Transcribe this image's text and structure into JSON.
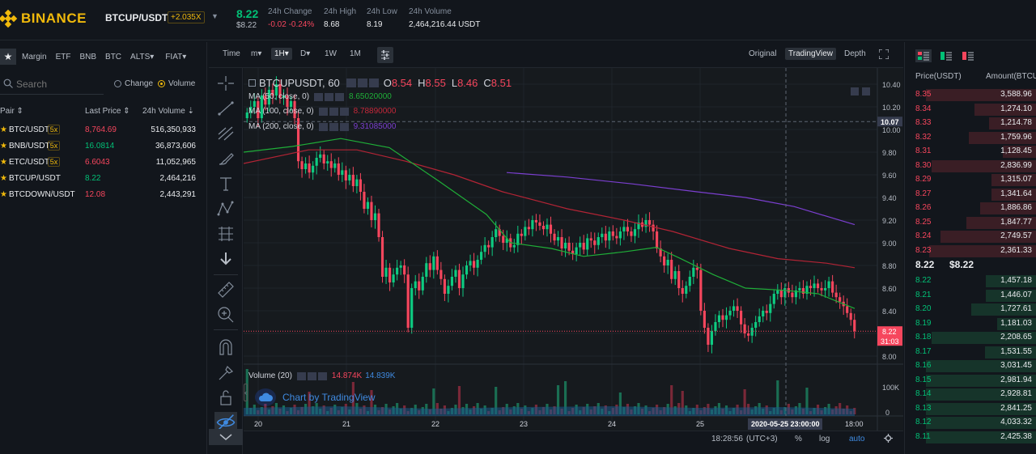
{
  "header": {
    "logo_text": "BINANCE",
    "pair": "BTCUP/USDT",
    "leverage": "+2.035X",
    "price": "8.22",
    "price_usd": "$8.22",
    "stats": [
      {
        "label": "24h Change",
        "value": "-0.02 -0.24%",
        "color": "#f6465d"
      },
      {
        "label": "24h High",
        "value": "8.68",
        "color": "#eaecef"
      },
      {
        "label": "24h Low",
        "value": "8.19",
        "color": "#eaecef"
      },
      {
        "label": "24h Volume",
        "value": "2,464,216.44 USDT",
        "color": "#eaecef"
      }
    ]
  },
  "market": {
    "tabs": [
      "Margin",
      "ETF",
      "BNB",
      "BTC",
      "ALTS▾",
      "FIAT▾"
    ],
    "search_placeholder": "Search",
    "radio_change": "Change",
    "radio_volume": "Volume",
    "col_pair": "Pair ⇕",
    "col_last": "Last Price ⇕",
    "col_vol": "24h Volume ⇣",
    "rows": [
      {
        "symbol": "BTC/USDT",
        "lev": "5x",
        "price": "8,764.69",
        "dir": "down",
        "volume": "516,350,933"
      },
      {
        "symbol": "BNB/USDT",
        "lev": "5x",
        "price": "16.0814",
        "dir": "up",
        "volume": "36,873,606"
      },
      {
        "symbol": "ETC/USDT",
        "lev": "5x",
        "price": "6.6043",
        "dir": "down",
        "volume": "11,052,965"
      },
      {
        "symbol": "BTCUP/USDT",
        "lev": "",
        "price": "8.22",
        "dir": "up",
        "volume": "2,464,216"
      },
      {
        "symbol": "BTCDOWN/USDT",
        "lev": "",
        "price": "12.08",
        "dir": "down",
        "volume": "2,443,291"
      }
    ]
  },
  "toolbar": {
    "time": "Time",
    "m": "m▾",
    "h1": "1H▾",
    "d": "D▾",
    "w": "1W",
    "mo": "1M",
    "views": [
      "Original",
      "TradingView",
      "Depth"
    ]
  },
  "chart": {
    "symbol_title": "BTCUPUSDT, 60",
    "ohlc": {
      "o": "8.54",
      "h": "8.55",
      "l": "8.46",
      "c": "8.51"
    },
    "ma": [
      {
        "label": "MA (50, close, 0)",
        "value": "8.65020000",
        "color": "#1fae38"
      },
      {
        "label": "MA (100, close, 0)",
        "value": "8.78890000",
        "color": "#c4283a"
      },
      {
        "label": "MA (200, close, 0)",
        "value": "9.31085000",
        "color": "#7b3fd0"
      }
    ],
    "volume_label": "Volume (20)",
    "vol_a": "14.874K",
    "vol_b": "14.839K",
    "watermark": "Chart by TradingView",
    "price_ticks": [
      "10.40",
      "10.20",
      "10.00",
      "9.80",
      "9.60",
      "9.40",
      "9.20",
      "9.00",
      "8.80",
      "8.60",
      "8.40",
      "8.20",
      "8.00"
    ],
    "vol_ticks": [
      "100K",
      "0"
    ],
    "crosshair_price": "10.07",
    "last_price_tag": "8.22",
    "countdown": "31:03",
    "date_ticks": [
      "20",
      "21",
      "22",
      "23",
      "24",
      "25",
      "18:00"
    ],
    "crosshair_date": "2020-05-25 23:00:00",
    "time_display": "18:28:56",
    "tz": "(UTC+3)",
    "pct": "%",
    "log": "log",
    "auto": "auto"
  },
  "orderbook": {
    "col_price": "Price(USDT)",
    "col_amount": "Amount(BTCU",
    "asks": [
      {
        "p": "8.35",
        "a": "3,588.96",
        "d": 0.98
      },
      {
        "p": "8.34",
        "a": "1,274.10",
        "d": 0.55
      },
      {
        "p": "8.33",
        "a": "1,214.78",
        "d": 0.42
      },
      {
        "p": "8.32",
        "a": "1,759.96",
        "d": 0.6
      },
      {
        "p": "8.31",
        "a": "1,128.45",
        "d": 0.3
      },
      {
        "p": "8.30",
        "a": "2,836.99",
        "d": 0.93
      },
      {
        "p": "8.29",
        "a": "1,315.07",
        "d": 0.4
      },
      {
        "p": "8.27",
        "a": "1,341.64",
        "d": 0.4
      },
      {
        "p": "8.26",
        "a": "1,886.86",
        "d": 0.5
      },
      {
        "p": "8.25",
        "a": "1,847.77",
        "d": 0.62
      },
      {
        "p": "8.24",
        "a": "2,749.57",
        "d": 0.85
      },
      {
        "p": "8.23",
        "a": "2,361.33",
        "d": 0.95
      }
    ],
    "mid_price": "8.22",
    "mid_usd": "$8.22",
    "bids": [
      {
        "p": "8.22",
        "a": "1,457.18",
        "d": 0.45
      },
      {
        "p": "8.21",
        "a": "1,446.07",
        "d": 0.45
      },
      {
        "p": "8.20",
        "a": "1,727.61",
        "d": 0.58
      },
      {
        "p": "8.19",
        "a": "1,181.03",
        "d": 0.35
      },
      {
        "p": "8.18",
        "a": "2,208.65",
        "d": 0.93
      },
      {
        "p": "8.17",
        "a": "1,531.55",
        "d": 0.46
      },
      {
        "p": "8.16",
        "a": "3,031.45",
        "d": 0.98
      },
      {
        "p": "8.15",
        "a": "2,981.94",
        "d": 0.98
      },
      {
        "p": "8.14",
        "a": "2,928.81",
        "d": 0.98
      },
      {
        "p": "8.13",
        "a": "2,841.25",
        "d": 0.98
      },
      {
        "p": "8.12",
        "a": "4,033.32",
        "d": 0.98
      },
      {
        "p": "8.11",
        "a": "2,425.38",
        "d": 0.98
      }
    ]
  },
  "colors": {
    "up": "#02c076",
    "down": "#f6465d",
    "accent": "#f0b90b"
  }
}
